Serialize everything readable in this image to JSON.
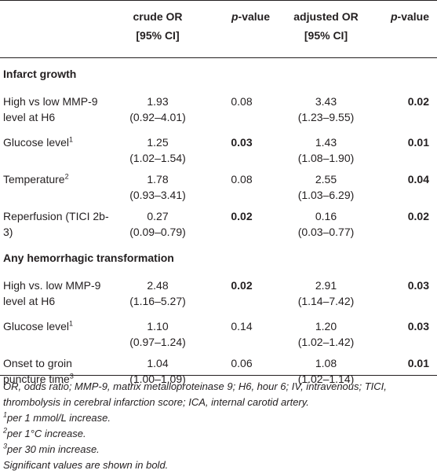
{
  "header": {
    "col1": "",
    "crude_line1": "crude OR",
    "crude_line2": "[95% CI]",
    "p1_italic": "p",
    "p1_rest": "-value",
    "adj_line1": "adjusted OR",
    "adj_line2": "[95% CI]",
    "p2_italic": "p",
    "p2_rest": "-value"
  },
  "sections": [
    {
      "title": "Infarct growth",
      "rows": [
        {
          "label": "High vs low MMP-9 level at H6",
          "sup": "",
          "crude": "1.93",
          "crude_ci": "(0.92–4.01)",
          "p1": "0.08",
          "p1_bold": false,
          "adj": "3.43",
          "adj_ci": "(1.23–9.55)",
          "p2": "0.02",
          "p2_bold": true
        },
        {
          "label": "Glucose level",
          "sup": "1",
          "crude": "1.25",
          "crude_ci": "(1.02–1.54)",
          "p1": "0.03",
          "p1_bold": true,
          "adj": "1.43",
          "adj_ci": "(1.08–1.90)",
          "p2": "0.01",
          "p2_bold": true
        },
        {
          "label": "Temperature",
          "sup": "2",
          "crude": "1.78",
          "crude_ci": "(0.93–3.41)",
          "p1": "0.08",
          "p1_bold": false,
          "adj": "2.55",
          "adj_ci": "(1.03–6.29)",
          "p2": "0.04",
          "p2_bold": true
        },
        {
          "label": "Reperfusion (TICI 2b-3)",
          "sup": "",
          "crude": "0.27",
          "crude_ci": "(0.09–0.79)",
          "p1": "0.02",
          "p1_bold": true,
          "adj": "0.16",
          "adj_ci": "(0.03–0.77)",
          "p2": "0.02",
          "p2_bold": true
        }
      ]
    },
    {
      "title": "Any hemorrhagic transformation",
      "rows": [
        {
          "label": "High vs. low MMP-9 level at H6",
          "sup": "",
          "crude": "2.48",
          "crude_ci": "(1.16–5.27)",
          "p1": "0.02",
          "p1_bold": true,
          "adj": "2.91",
          "adj_ci": "(1.14–7.42)",
          "p2": "0.03",
          "p2_bold": true
        },
        {
          "label": "Glucose level",
          "sup": "1",
          "crude": "1.10",
          "crude_ci": "(0.97–1.24)",
          "p1": "0.14",
          "p1_bold": false,
          "adj": "1.20",
          "adj_ci": "(1.02–1.42)",
          "p2": "0.03",
          "p2_bold": true
        },
        {
          "label": "Onset to groin puncture time",
          "sup": "3",
          "crude": "1.04",
          "crude_ci": "(1.00–1.09)",
          "p1": "0.06",
          "p1_bold": false,
          "adj": "1.08",
          "adj_ci": "(1.02–1.14)",
          "p2": "0.01",
          "p2_bold": true
        }
      ]
    }
  ],
  "footnotes": {
    "abbrev": "OR, odds ratio; MMP-9, matrix metalloproteinase 9; H6, hour 6; IV, intravenous; TICI, thrombolysis in cerebral infarction score; ICA, internal carotid artery.",
    "fn1_sup": "1",
    "fn1": "per 1 mmol/L increase.",
    "fn2_sup": "2",
    "fn2": "per 1°C increase.",
    "fn3_sup": "3",
    "fn3": "per 30 min increase.",
    "significance": "Significant values are shown in bold."
  }
}
